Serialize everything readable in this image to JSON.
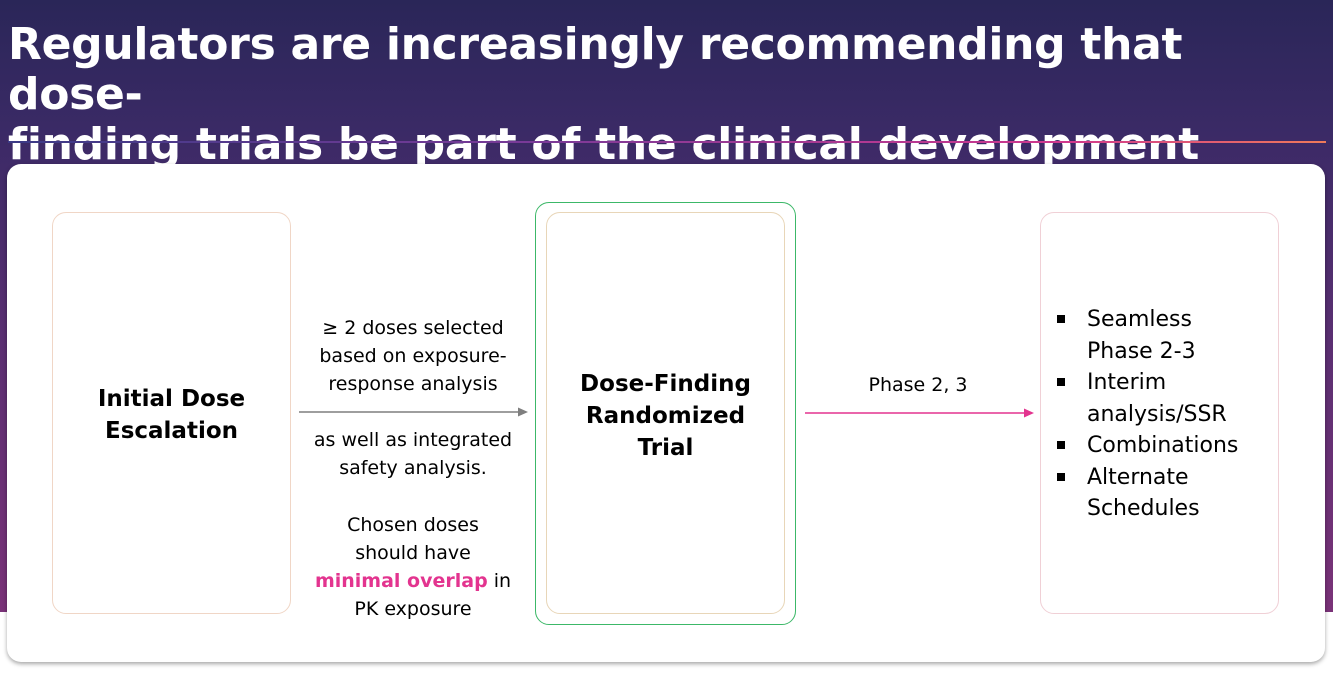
{
  "slide": {
    "title_line1": "Regulators are increasingly recommending that dose-",
    "title_line2": "finding trials be part of the clinical development program"
  },
  "diagram": {
    "box_initial": {
      "line1": "Initial Dose",
      "line2": "Escalation"
    },
    "arrow_left_text": {
      "block1": [
        "≥ 2 doses selected",
        "based on exposure-",
        "response analysis"
      ],
      "block2": [
        "as well as integrated",
        "safety analysis."
      ],
      "block3_line1": "Chosen doses",
      "block3_line2": "should have",
      "block3_highlight": "minimal overlap",
      "block3_after_highlight": " in",
      "block3_line4": "PK exposure"
    },
    "box_randomized": {
      "line1": "Dose-Finding",
      "line2": "Randomized",
      "line3": "Trial"
    },
    "arrow_right_label": "Phase 2, 3",
    "box_outcomes": {
      "items": [
        [
          "Seamless",
          "Phase 2-3"
        ],
        [
          "Interim",
          "analysis/SSR"
        ],
        [
          "Combinations"
        ],
        [
          "Alternate",
          "Schedules"
        ]
      ]
    },
    "colors": {
      "highlight": "#e3348f",
      "arrow_left": "#7f7f7f",
      "arrow_right": "#e3348f",
      "selected_box_border": "#3cb868"
    }
  }
}
